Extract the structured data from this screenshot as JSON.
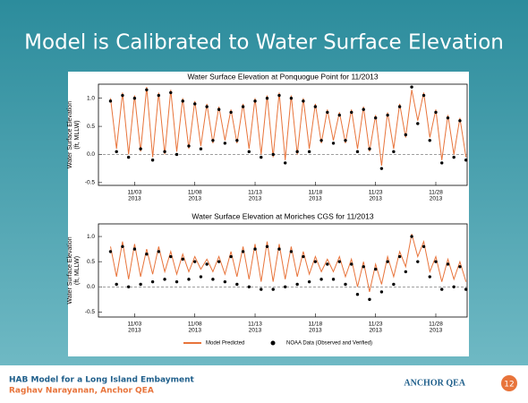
{
  "slide": {
    "title": "Model is Calibrated to Water Surface Elevation"
  },
  "chart_data": [
    {
      "type": "line",
      "title": "Water Surface Elevation at Ponquogue Point for 11/2013",
      "y_label": "Water Surface Elevation",
      "y_label_unit": "(ft, MLLW)",
      "xlim": [
        0,
        30.6
      ],
      "ylim": [
        -0.55,
        1.25
      ],
      "xticks": [
        {
          "value": 3,
          "label": "11/03",
          "year": "2013"
        },
        {
          "value": 8,
          "label": "11/08",
          "year": "2013"
        },
        {
          "value": 13,
          "label": "11/13",
          "year": "2013"
        },
        {
          "value": 18,
          "label": "11/18",
          "year": "2013"
        },
        {
          "value": 23,
          "label": "11/23",
          "year": "2013"
        },
        {
          "value": 28,
          "label": "11/28",
          "year": "2013"
        }
      ],
      "yticks": [
        -0.5,
        {
          "value": 0,
          "label": "0.0"
        },
        0.5,
        {
          "value": 1,
          "label": "1.0"
        }
      ],
      "x": [
        1,
        1.5,
        2,
        2.5,
        3,
        3.5,
        4,
        4.5,
        5,
        5.5,
        6,
        6.5,
        7,
        7.5,
        8,
        8.5,
        9,
        9.5,
        10,
        10.5,
        11,
        11.5,
        12,
        12.5,
        13,
        13.5,
        14,
        14.5,
        15,
        15.5,
        16,
        16.5,
        17,
        17.5,
        18,
        18.5,
        19,
        19.5,
        20,
        20.5,
        21,
        21.5,
        22,
        22.5,
        23,
        23.5,
        24,
        24.5,
        25,
        25.5,
        26,
        26.5,
        27,
        27.5,
        28,
        28.5,
        29,
        29.5,
        30,
        30.5
      ],
      "series": [
        {
          "color": "#e8743b",
          "style": "line",
          "values": [
            1.0,
            0.1,
            1.1,
            0.0,
            1.05,
            0.05,
            1.2,
            -0.05,
            1.1,
            0.0,
            1.15,
            0.05,
            1.0,
            0.1,
            0.95,
            0.15,
            0.9,
            0.2,
            0.85,
            0.25,
            0.8,
            0.2,
            0.9,
            0.1,
            1.0,
            0.0,
            1.05,
            -0.05,
            1.1,
            -0.1,
            1.05,
            0.0,
            1.0,
            0.1,
            0.9,
            0.2,
            0.8,
            0.25,
            0.75,
            0.2,
            0.8,
            0.1,
            0.85,
            0.05,
            0.7,
            -0.2,
            0.75,
            0.1,
            0.9,
            0.3,
            1.15,
            0.6,
            1.1,
            0.3,
            0.8,
            -0.1,
            0.7,
            0.0,
            0.65,
            -0.05
          ]
        },
        {
          "color": "#000000",
          "style": "dots",
          "values": [
            0.95,
            0.05,
            1.05,
            -0.05,
            1.0,
            0.1,
            1.15,
            -0.1,
            1.05,
            0.05,
            1.1,
            0.0,
            0.95,
            0.15,
            0.9,
            0.1,
            0.85,
            0.25,
            0.8,
            0.2,
            0.75,
            0.25,
            0.85,
            0.05,
            0.95,
            -0.05,
            1.0,
            0.0,
            1.05,
            -0.15,
            1.0,
            0.05,
            0.95,
            0.05,
            0.85,
            0.25,
            0.75,
            0.2,
            0.7,
            0.25,
            0.75,
            0.05,
            0.8,
            0.1,
            0.65,
            -0.25,
            0.7,
            0.05,
            0.85,
            0.35,
            1.2,
            0.55,
            1.05,
            0.25,
            0.75,
            -0.15,
            0.65,
            -0.05,
            0.6,
            -0.1
          ]
        }
      ]
    },
    {
      "type": "line",
      "title": "Water Surface Elevation at Moriches CGS for 11/2013",
      "y_label": "Water Surface Elevation",
      "y_label_unit": "(ft, MLLW)",
      "xlim": [
        0,
        30.6
      ],
      "ylim": [
        -0.6,
        1.25
      ],
      "xticks": [
        {
          "value": 3,
          "label": "11/03",
          "year": "2013"
        },
        {
          "value": 8,
          "label": "11/08",
          "year": "2013"
        },
        {
          "value": 13,
          "label": "11/13",
          "year": "2013"
        },
        {
          "value": 18,
          "label": "11/18",
          "year": "2013"
        },
        {
          "value": 23,
          "label": "11/23",
          "year": "2013"
        },
        {
          "value": 28,
          "label": "11/28",
          "year": "2013"
        }
      ],
      "yticks": [
        -0.5,
        {
          "value": 0,
          "label": "0.0"
        },
        0.5,
        {
          "value": 1,
          "label": "1.0"
        }
      ],
      "x": [
        1,
        1.5,
        2,
        2.5,
        3,
        3.5,
        4,
        4.5,
        5,
        5.5,
        6,
        6.5,
        7,
        7.5,
        8,
        8.5,
        9,
        9.5,
        10,
        10.5,
        11,
        11.5,
        12,
        12.5,
        13,
        13.5,
        14,
        14.5,
        15,
        15.5,
        16,
        16.5,
        17,
        17.5,
        18,
        18.5,
        19,
        19.5,
        20,
        20.5,
        21,
        21.5,
        22,
        22.5,
        23,
        23.5,
        24,
        24.5,
        25,
        25.5,
        26,
        26.5,
        27,
        27.5,
        28,
        28.5,
        29,
        29.5,
        30,
        30.5
      ],
      "series": [
        {
          "name": "Model Predicted",
          "color": "#e8743b",
          "style": "line",
          "values": [
            0.8,
            0.2,
            0.9,
            0.15,
            0.85,
            0.2,
            0.75,
            0.25,
            0.8,
            0.3,
            0.7,
            0.25,
            0.65,
            0.3,
            0.6,
            0.35,
            0.55,
            0.3,
            0.6,
            0.25,
            0.7,
            0.2,
            0.8,
            0.15,
            0.85,
            0.1,
            0.9,
            0.1,
            0.85,
            0.15,
            0.8,
            0.2,
            0.7,
            0.25,
            0.6,
            0.3,
            0.55,
            0.3,
            0.6,
            0.2,
            0.55,
            0.0,
            0.5,
            -0.1,
            0.45,
            0.05,
            0.6,
            0.2,
            0.7,
            0.4,
            1.05,
            0.6,
            0.9,
            0.3,
            0.6,
            0.1,
            0.55,
            0.15,
            0.5,
            0.1
          ]
        },
        {
          "name": "NOAA Data (Observed and Verified)",
          "color": "#000000",
          "style": "dots",
          "values": [
            0.7,
            0.05,
            0.8,
            0.0,
            0.75,
            0.05,
            0.65,
            0.1,
            0.7,
            0.15,
            0.6,
            0.1,
            0.55,
            0.15,
            0.5,
            0.2,
            0.45,
            0.15,
            0.5,
            0.1,
            0.6,
            0.05,
            0.7,
            0.0,
            0.75,
            -0.05,
            0.8,
            -0.05,
            0.75,
            0.0,
            0.7,
            0.05,
            0.6,
            0.1,
            0.5,
            0.15,
            0.45,
            0.15,
            0.5,
            0.05,
            0.45,
            -0.15,
            0.4,
            -0.25,
            0.35,
            -0.1,
            0.5,
            0.05,
            0.6,
            0.3,
            1.0,
            0.5,
            0.8,
            0.2,
            0.5,
            -0.05,
            0.45,
            0.0,
            0.4,
            -0.05
          ]
        }
      ]
    }
  ],
  "footer": {
    "title": "HAB Model for a Long Island Embayment",
    "author": "Raghav Narayanan, Anchor QEA",
    "logo": "ANCHOR QEA",
    "page": "12"
  }
}
